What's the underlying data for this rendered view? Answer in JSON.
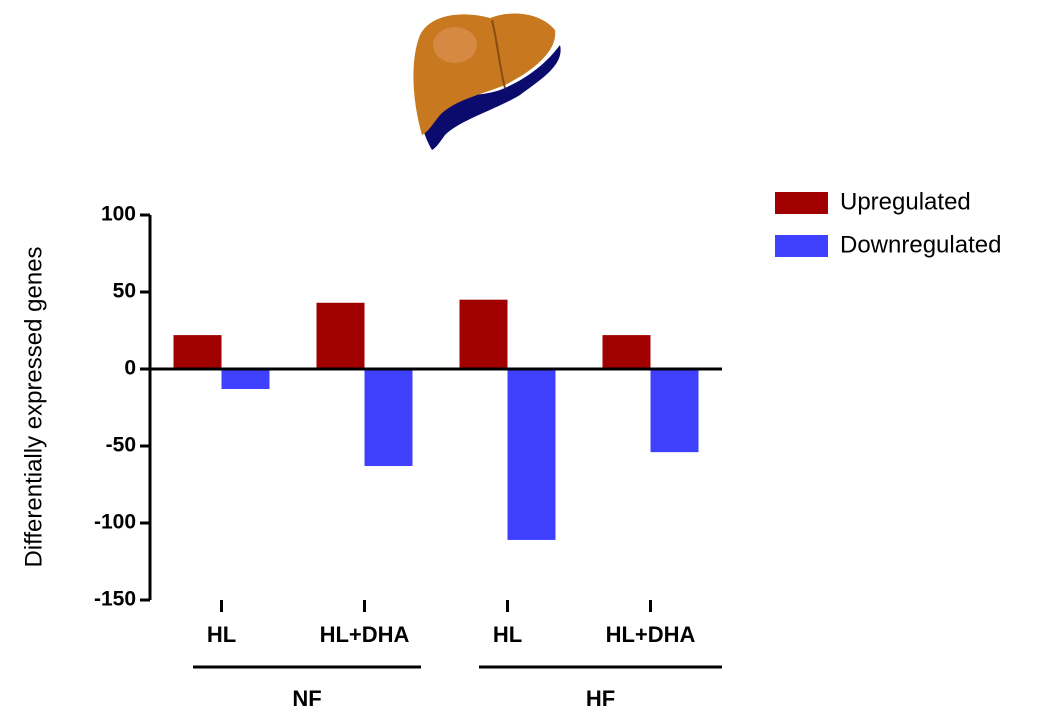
{
  "chart_data": {
    "type": "bar",
    "y_label": "Differentially expressed genes",
    "categories": [
      "HL",
      "HL+DHA",
      "HL",
      "HL+DHA"
    ],
    "group_labels": [
      "NF",
      "HF"
    ],
    "series": [
      {
        "name": "Upregulated",
        "color": "#a00000",
        "values": [
          22,
          43,
          45,
          22
        ]
      },
      {
        "name": "Downregulated",
        "color": "#4040ff",
        "values": [
          -13,
          -63,
          -111,
          -54
        ]
      }
    ],
    "ylim": [
      -150,
      100
    ],
    "yticks": [
      -150,
      -100,
      -50,
      0,
      50,
      100
    ],
    "legend": "right"
  }
}
